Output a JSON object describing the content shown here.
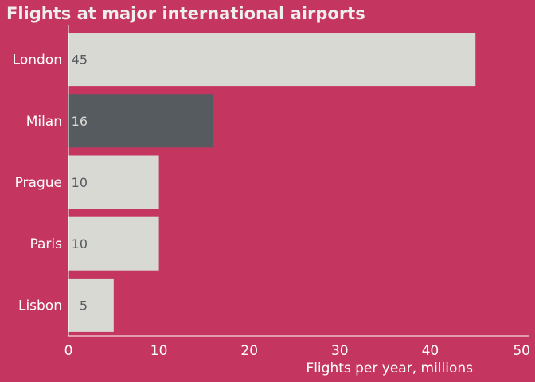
{
  "chart_data": {
    "type": "bar",
    "orientation": "horizontal",
    "title": "Flights at major international airports",
    "xlabel": "Flights per year, millions",
    "ylabel": "",
    "categories": [
      "London",
      "Milan",
      "Prague",
      "Paris",
      "Lisbon"
    ],
    "values": [
      45,
      16,
      10,
      10,
      5
    ],
    "value_labels": [
      "45",
      "16",
      "10",
      "10",
      "5"
    ],
    "highlight": "Milan",
    "xlim": [
      0,
      50
    ],
    "xticks": [
      "0",
      "10",
      "20",
      "30",
      "40",
      "50"
    ],
    "grid": false,
    "legend": "none",
    "colors": {
      "background": "#c43660",
      "bar": "#d9d9d4",
      "bar_highlight": "#565b60",
      "axis": "#ffffff",
      "text": "#ffffff",
      "value_text": "#555a60"
    }
  }
}
